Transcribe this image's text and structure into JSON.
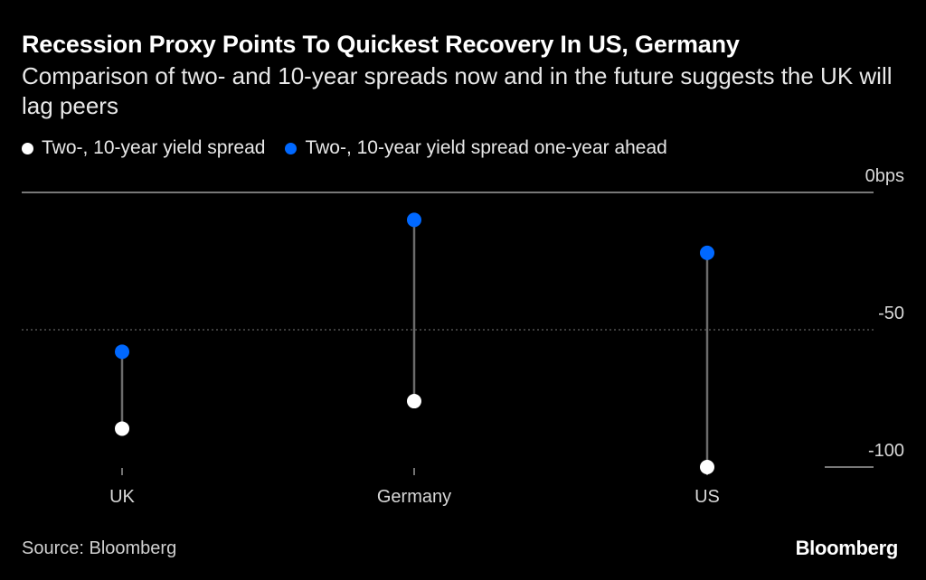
{
  "chart_data": {
    "type": "dot-range",
    "title": "Recession Proxy Points To Quickest Recovery In US, Germany",
    "subtitle": "Comparison of two- and 10-year spreads now and in the future suggests the UK will lag peers",
    "categories": [
      "UK",
      "Germany",
      "US"
    ],
    "series": [
      {
        "name": "Two-, 10-year yield spread",
        "color": "#ffffff",
        "values": [
          -86,
          -76,
          -100
        ]
      },
      {
        "name": "Two-, 10-year yield spread one-year ahead",
        "color": "#0068ff",
        "values": [
          -58,
          -10,
          -22
        ]
      }
    ],
    "y_ticks": [
      {
        "value": 0,
        "label": "0bps"
      },
      {
        "value": -50,
        "label": "-50"
      },
      {
        "value": -100,
        "label": "-100"
      }
    ],
    "ylim": [
      -100,
      0
    ],
    "xlabel": "",
    "ylabel": "",
    "grid": true
  },
  "colors": {
    "background": "#000000",
    "connector": "#6b6b6b",
    "axis_line": "#bfbfbf"
  },
  "footer": {
    "source": "Source: Bloomberg",
    "brand": "Bloomberg"
  }
}
